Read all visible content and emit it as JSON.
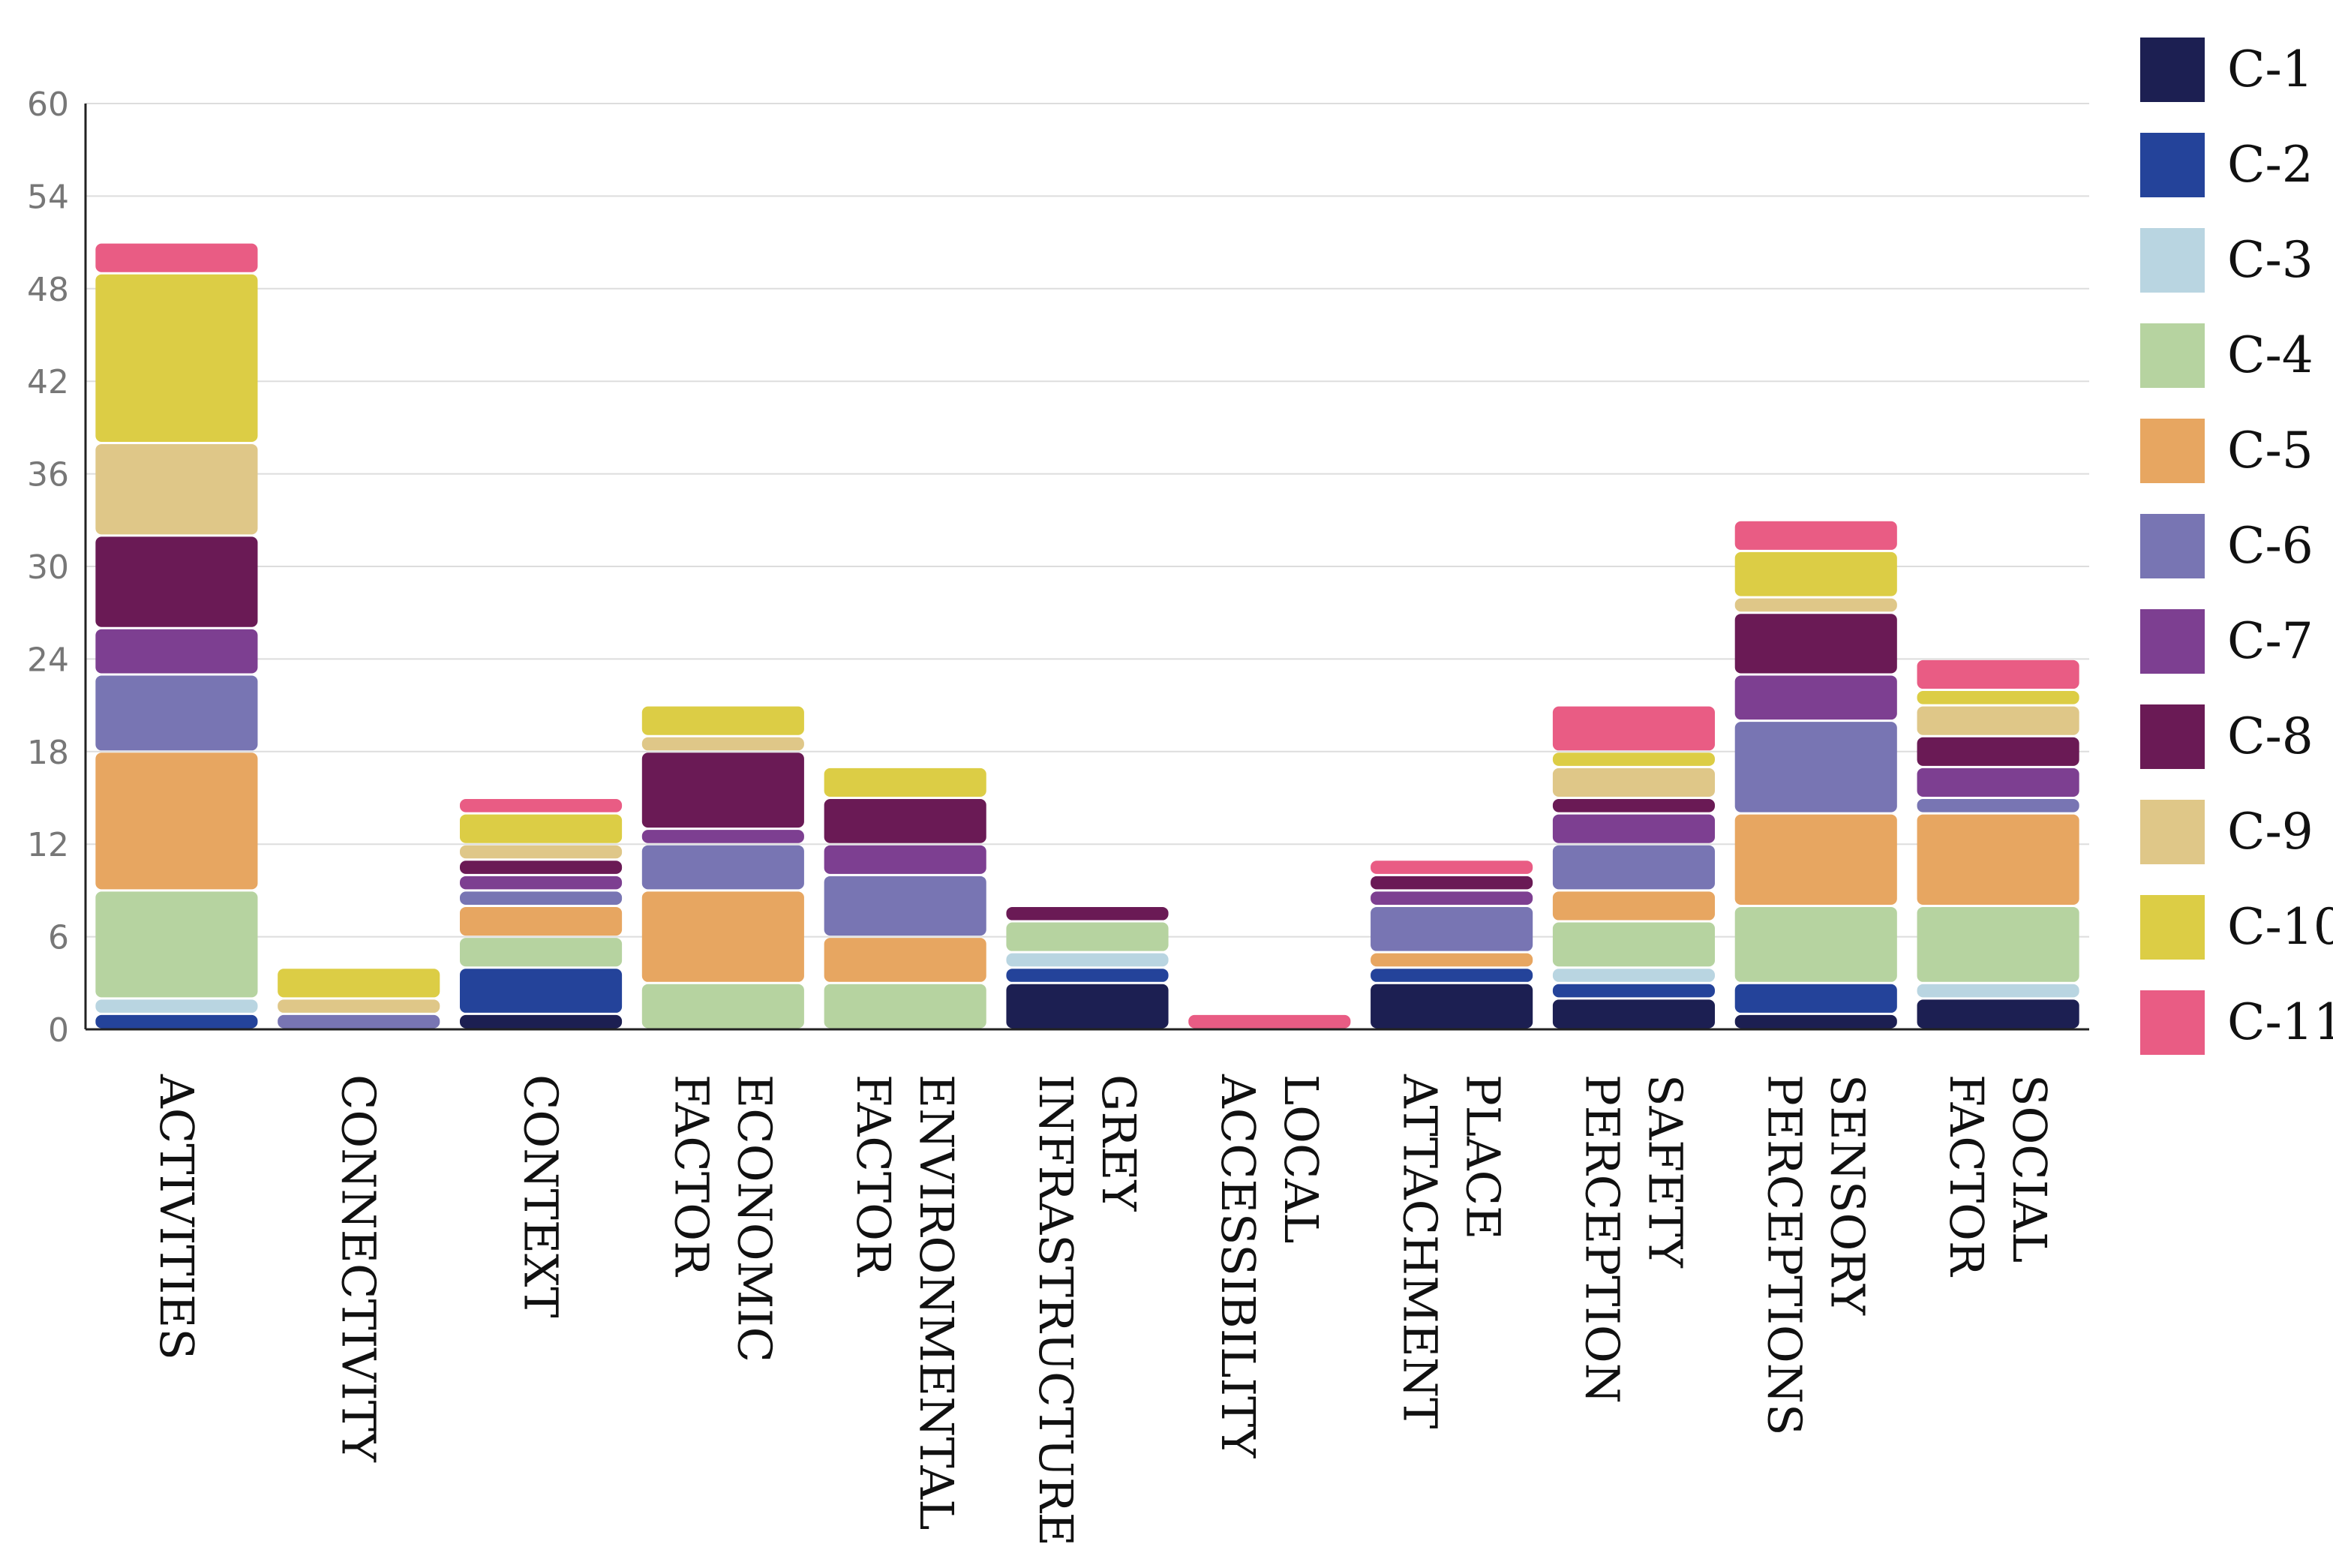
{
  "chart_data": {
    "type": "bar",
    "stacked": true,
    "title": "",
    "xlabel": "",
    "ylabel": "",
    "ylim": [
      0,
      60
    ],
    "yticks": [
      0,
      6,
      12,
      18,
      24,
      30,
      36,
      42,
      48,
      54,
      60
    ],
    "grid": true,
    "legend_position": "right",
    "categories": [
      [
        "ACTIVITIES"
      ],
      [
        "CONNECTIVITY"
      ],
      [
        "CONTEXT"
      ],
      [
        "ECONOMIC",
        "FACTOR"
      ],
      [
        "ENVIRONMENTAL",
        "FACTOR"
      ],
      [
        "GREY",
        "INFRASTRUCTURE"
      ],
      [
        "LOCAL",
        "ACCESSIBILITY"
      ],
      [
        "PLACE",
        "ATTACHMENT"
      ],
      [
        "SAFETY",
        "PERCEPTION"
      ],
      [
        "SENSORY",
        "PERCEPTIONS"
      ],
      [
        "SOCIAL",
        "FACTOR"
      ]
    ],
    "series": [
      {
        "name": "C-1",
        "color": "#1c1f52",
        "values": [
          0,
          0,
          1,
          0,
          0,
          3,
          0,
          3,
          2,
          1,
          2
        ]
      },
      {
        "name": "C-2",
        "color": "#24439a",
        "values": [
          1,
          0,
          3,
          0,
          0,
          1,
          0,
          1,
          1,
          2,
          0
        ]
      },
      {
        "name": "C-3",
        "color": "#b9d5e1",
        "values": [
          1,
          0,
          0,
          0,
          0,
          1,
          0,
          0,
          1,
          0,
          1
        ]
      },
      {
        "name": "C-4",
        "color": "#b6d3a0",
        "values": [
          7,
          0,
          2,
          3,
          3,
          2,
          0,
          0,
          3,
          5,
          5
        ]
      },
      {
        "name": "C-5",
        "color": "#e7a661",
        "values": [
          9,
          0,
          2,
          6,
          3,
          0,
          0,
          1,
          2,
          6,
          6
        ]
      },
      {
        "name": "C-6",
        "color": "#7875b3",
        "values": [
          5,
          1,
          1,
          3,
          4,
          0,
          0,
          3,
          3,
          6,
          1
        ]
      },
      {
        "name": "C-7",
        "color": "#7d3f91",
        "values": [
          3,
          0,
          1,
          1,
          2,
          0,
          0,
          1,
          2,
          3,
          2
        ]
      },
      {
        "name": "C-8",
        "color": "#6a1a55",
        "values": [
          6,
          0,
          1,
          5,
          3,
          1,
          0,
          1,
          1,
          4,
          2
        ]
      },
      {
        "name": "C-9",
        "color": "#dfc788",
        "values": [
          6,
          1,
          1,
          1,
          0,
          0,
          0,
          0,
          2,
          1,
          2
        ]
      },
      {
        "name": "C-10",
        "color": "#dccd45",
        "values": [
          11,
          2,
          2,
          2,
          2,
          0,
          0,
          0,
          1,
          3,
          1
        ]
      },
      {
        "name": "C-11",
        "color": "#e95c84",
        "values": [
          2,
          0,
          1,
          0,
          0,
          0,
          1,
          1,
          3,
          2,
          2
        ]
      }
    ]
  }
}
